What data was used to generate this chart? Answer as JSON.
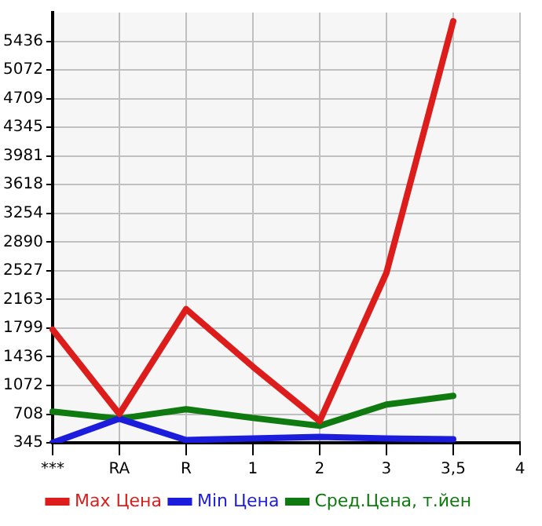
{
  "chart_data": {
    "type": "line",
    "categories": [
      "***",
      "RA",
      "R",
      "1",
      "2",
      "3",
      "3,5",
      "4"
    ],
    "series": [
      {
        "name": "Max Цена",
        "color": "#dd1c1c",
        "values": [
          1780,
          710,
          2040,
          1310,
          620,
          2500,
          5690,
          null
        ]
      },
      {
        "name": "Min Цена",
        "color": "#1c1cdd",
        "values": [
          345,
          650,
          380,
          400,
          420,
          400,
          390,
          null
        ]
      },
      {
        "name": "Сред.Цена, т.йен",
        "color": "#0f7a0f",
        "values": [
          740,
          650,
          770,
          660,
          560,
          830,
          940,
          null
        ]
      }
    ],
    "ylim": [
      345,
      5800
    ],
    "yticks": [
      345,
      708,
      1072,
      1436,
      1799,
      2163,
      2527,
      2890,
      3254,
      3618,
      3981,
      4345,
      4709,
      5072,
      5436
    ],
    "grid": true,
    "legend": "bottom",
    "marker": "none",
    "line_style": "solid"
  }
}
